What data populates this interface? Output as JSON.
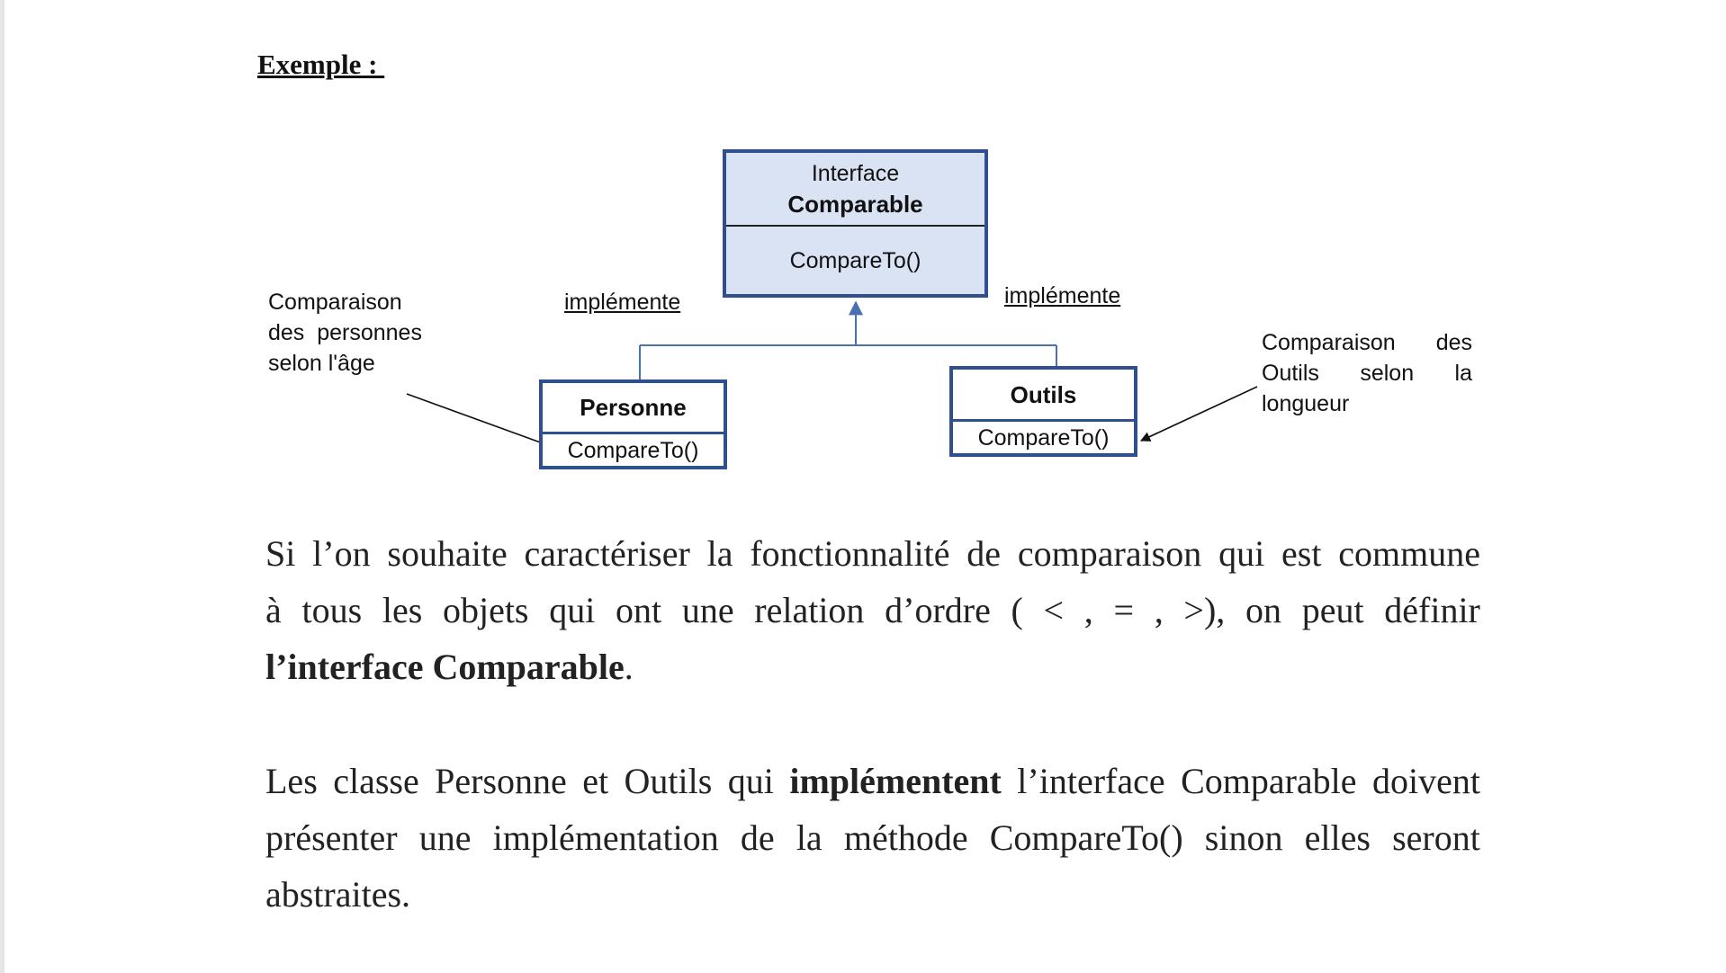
{
  "heading": "Exemple : ",
  "diagram": {
    "interface": {
      "stereotype": "Interface",
      "name": "Comparable",
      "method": "CompareTo()"
    },
    "personne": {
      "name": "Personne",
      "method": "CompareTo()"
    },
    "outils": {
      "name": "Outils",
      "method": "CompareTo()"
    },
    "relation_left": "implémente",
    "relation_right": "implémente",
    "note_left": [
      "Comparaison",
      "des  personnes",
      "selon l'âge"
    ],
    "note_right": {
      "line1": [
        "Comparaison",
        "des"
      ],
      "line2": [
        "Outils",
        "selon",
        "la"
      ],
      "line3": "longueur"
    },
    "colors": {
      "box_border": "#2f4f8f",
      "interface_fill": "#dae3f3",
      "connector": "#4a70b0"
    }
  },
  "paragraph1": {
    "line1": [
      "Si",
      "l’on",
      "souhaite",
      "caractériser",
      "la",
      "fonctionnalité",
      "de",
      "comparaison",
      "qui",
      "est",
      "commune"
    ],
    "line2": [
      "à",
      "tous",
      "les",
      "objets",
      "qui",
      "ont",
      "une",
      "relation",
      "d’ordre",
      "(",
      "<",
      ",",
      "=",
      ",",
      ">),",
      "on",
      "peut",
      "définir"
    ],
    "line3_bold": "l’interface Comparable",
    "line3_end": "."
  },
  "paragraph2": {
    "line1_start": [
      "Les",
      "classe",
      "Personne",
      "et",
      "Outils",
      "qui"
    ],
    "line1_bold": "implémentent",
    "line1_end": [
      "l’interface",
      "Comparable",
      "doivent"
    ],
    "line2": [
      "présenter",
      "une",
      "implémentation",
      "de",
      "la",
      "méthode",
      "CompareTo()",
      "sinon",
      "elles",
      "seront"
    ],
    "line3": "abstraites."
  }
}
